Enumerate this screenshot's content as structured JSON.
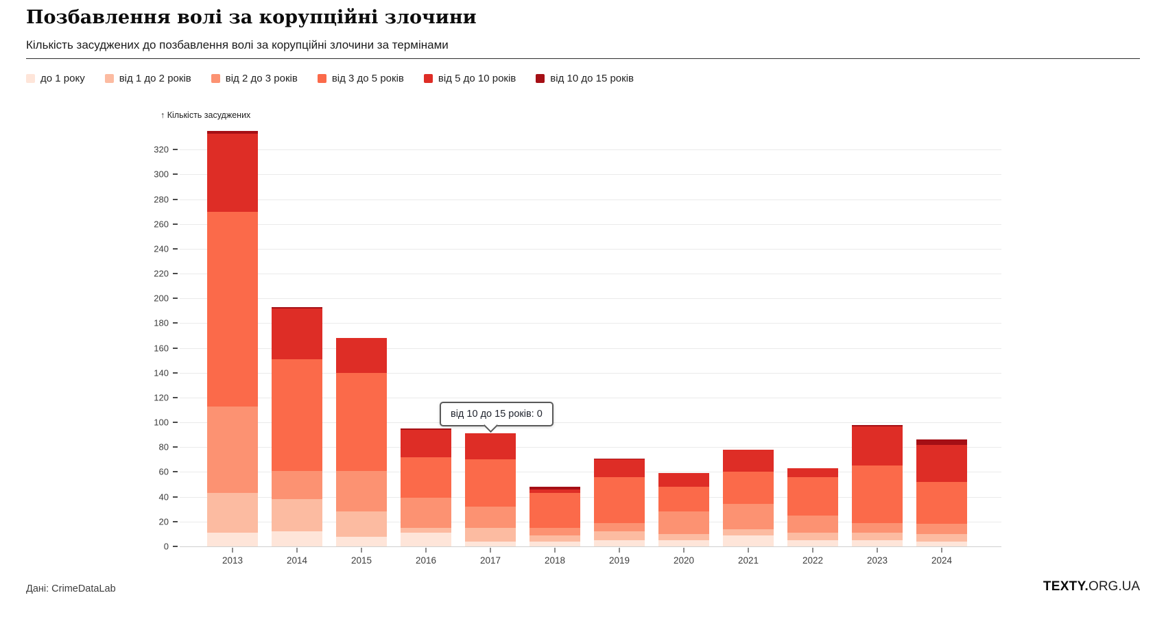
{
  "header": {
    "title": "Позбавлення волі за корупційні злочини",
    "subtitle": "Кількість засуджених до позбавлення волі за корупційні злочини за термінами"
  },
  "chart_data": {
    "type": "bar",
    "stacked": true,
    "title": "Позбавлення волі за корупційні злочини",
    "ylabel": "↑ Кількість засуджених",
    "xlabel": "",
    "ylim": [
      0,
      340
    ],
    "yticks": [
      0,
      20,
      40,
      60,
      80,
      100,
      120,
      140,
      160,
      180,
      200,
      220,
      240,
      260,
      280,
      300,
      320
    ],
    "grid": true,
    "legend_position": "top",
    "categories": [
      "2013",
      "2014",
      "2015",
      "2016",
      "2017",
      "2018",
      "2019",
      "2020",
      "2021",
      "2022",
      "2023",
      "2024"
    ],
    "series": [
      {
        "name": "до 1 року",
        "color": "#fee5d9",
        "values": [
          11,
          12,
          8,
          11,
          4,
          4,
          5,
          5,
          9,
          5,
          5,
          4
        ]
      },
      {
        "name": "від 1 до 2 років",
        "color": "#fcbba1",
        "values": [
          32,
          26,
          20,
          4,
          11,
          5,
          7,
          5,
          5,
          6,
          6,
          6
        ]
      },
      {
        "name": "від 2 до 3 років",
        "color": "#fc9272",
        "values": [
          70,
          23,
          33,
          24,
          17,
          6,
          7,
          18,
          20,
          14,
          8,
          8
        ]
      },
      {
        "name": "від 3 до 5 років",
        "color": "#fb6a4a",
        "values": [
          157,
          90,
          79,
          33,
          38,
          28,
          37,
          20,
          26,
          31,
          46,
          34
        ]
      },
      {
        "name": "від 5 до 10 років",
        "color": "#de2d26",
        "values": [
          63,
          41,
          28,
          22,
          21,
          3,
          14,
          11,
          18,
          7,
          32,
          30
        ]
      },
      {
        "name": "від 10 до 15 років",
        "color": "#a50f15",
        "values": [
          2,
          1,
          0,
          1,
          0,
          2,
          1,
          0,
          0,
          0,
          1,
          4
        ]
      }
    ],
    "totals": [
      335,
      193,
      168,
      95,
      91,
      48,
      71,
      59,
      78,
      63,
      98,
      86
    ]
  },
  "tooltip": {
    "text": "від 10 до 15 років: 0",
    "category": "2017"
  },
  "footer": {
    "source": "Дані: CrimeDataLab",
    "brand_bold": "TEXTY.",
    "brand_rest": "ORG.UA"
  }
}
